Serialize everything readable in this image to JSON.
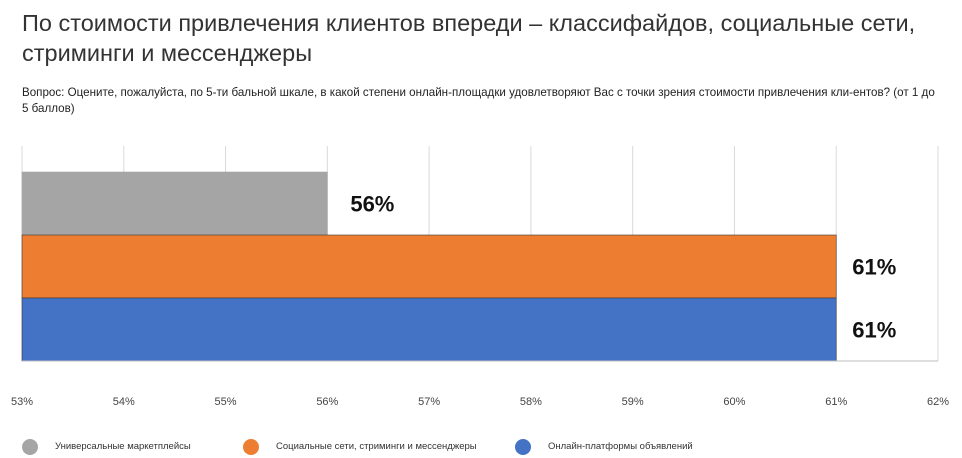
{
  "title": "По стоимости привлечения клиентов впереди – классифайдов, социальные сети, стриминги и мессенджеры",
  "subtitle": "Вопрос: Оцените, пожалуйста, по 5-ти бальной шкале, в какой степени онлайн-площадки удовлетворяют Вас с точки зрения стоимости привлечения кли-ентов? (от 1 до 5 баллов)",
  "chart_data": {
    "type": "bar",
    "orientation": "horizontal",
    "xlim": [
      53,
      62
    ],
    "x_ticks": [
      "53%",
      "54%",
      "55%",
      "56%",
      "57%",
      "58%",
      "59%",
      "60%",
      "61%",
      "62%"
    ],
    "grid": true,
    "legend_position": "bottom",
    "series": [
      {
        "name": "Универсальные маркетплейсы",
        "value": 56,
        "label": "56%",
        "color": "#a5a5a5"
      },
      {
        "name": "Социальные сети, стриминги и мессенджеры",
        "value": 61,
        "label": "61%",
        "color": "#ed7d31"
      },
      {
        "name": "Онлайн-платформы объявлений",
        "value": 61,
        "label": "61%",
        "color": "#4472c4"
      }
    ]
  }
}
